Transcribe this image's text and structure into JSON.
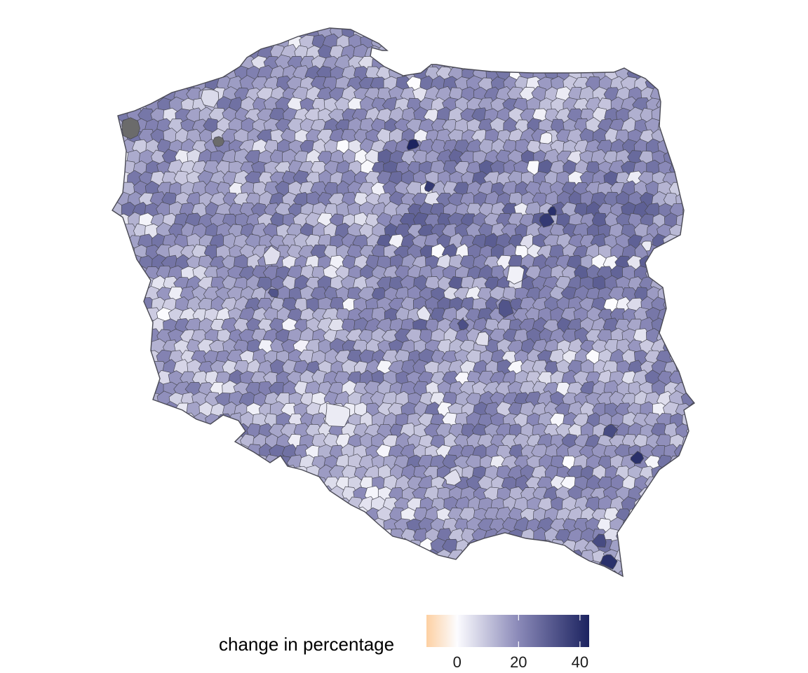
{
  "map": {
    "region": "Poland",
    "type": "choropleth",
    "unit_level": "municipality"
  },
  "legend": {
    "title": "change in percentage",
    "scale": {
      "min": -10,
      "max": 43,
      "colors": [
        {
          "value": -10,
          "color": "#fdd0a2"
        },
        {
          "value": 0,
          "color": "#fcfcff"
        },
        {
          "value": 20,
          "color": "#8a89b8"
        },
        {
          "value": 43,
          "color": "#1c2360"
        }
      ]
    },
    "ticks": [
      {
        "value": 0,
        "label": "0"
      },
      {
        "value": 20,
        "label": "20"
      },
      {
        "value": 40,
        "label": "40"
      }
    ]
  },
  "colors": {
    "border": "#4a4a55",
    "missing": "#6b6b6b",
    "background": "#ffffff"
  }
}
